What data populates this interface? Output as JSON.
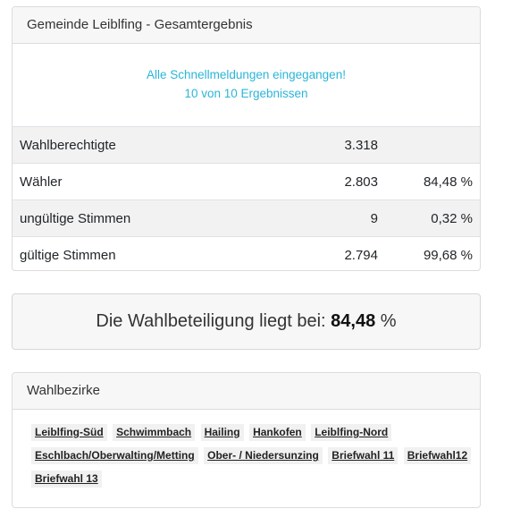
{
  "result": {
    "title": "Gemeinde Leiblfing - Gesamtergebnis",
    "notice_line1": "Alle Schnellmeldungen eingegangen!",
    "notice_line2": "10 von 10 Ergebnissen",
    "rows": [
      {
        "label": "Wahlberechtigte",
        "value": "3.318",
        "percent": ""
      },
      {
        "label": "Wähler",
        "value": "2.803",
        "percent": "84,48 %"
      },
      {
        "label": "ungültige Stimmen",
        "value": "9",
        "percent": "0,32 %"
      },
      {
        "label": "gültige Stimmen",
        "value": "2.794",
        "percent": "99,68 %"
      }
    ]
  },
  "turnout": {
    "prefix": "Die Wahlbeteiligung liegt bei: ",
    "value": "84,48",
    "suffix": " %"
  },
  "districts": {
    "title": "Wahlbezirke",
    "items": [
      "Leiblfing-Süd",
      "Schwimmbach",
      "Hailing",
      "Hankofen",
      "Leiblfing-Nord",
      "Eschlbach/Oberwalting/Metting",
      "Ober- / Niedersunzing",
      "Briefwahl 11",
      "Briefwahl12",
      "Briefwahl 13"
    ]
  }
}
